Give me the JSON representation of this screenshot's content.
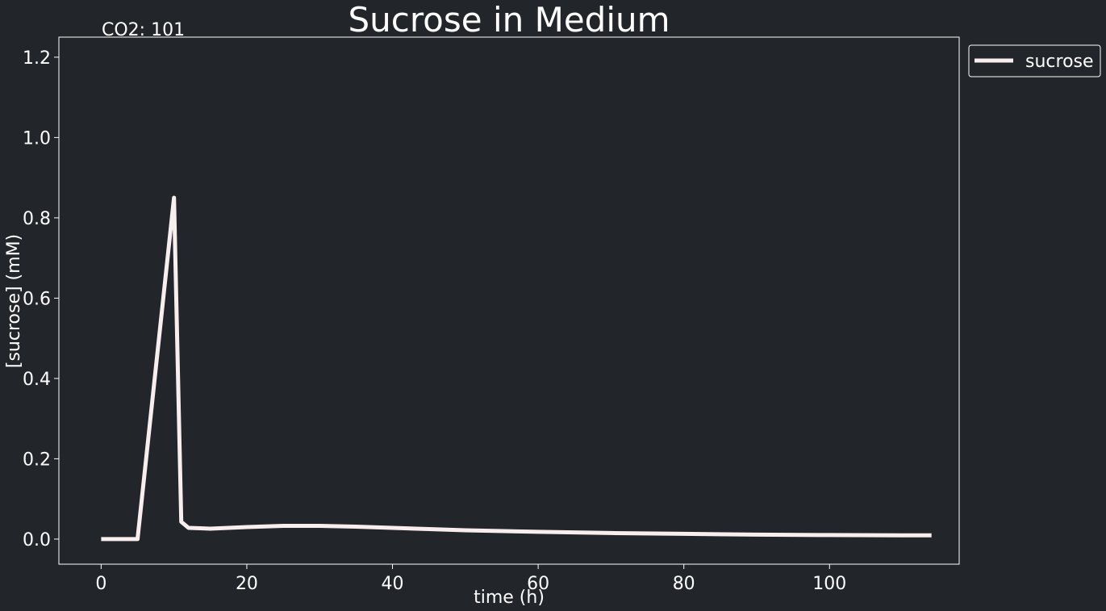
{
  "chart_data": {
    "type": "line",
    "title": "Sucrose in Medium",
    "annotation": "CO2: 101",
    "xlabel": "time (h)",
    "ylabel": "[sucrose] (mM)",
    "xlim": [
      -5.8,
      117.8
    ],
    "ylim": [
      -0.0625,
      1.25
    ],
    "xticks": [
      0,
      20,
      40,
      60,
      80,
      100
    ],
    "xtick_labels": [
      "0",
      "20",
      "40",
      "60",
      "80",
      "100"
    ],
    "yticks": [
      0.0,
      0.2,
      0.4,
      0.6,
      0.8,
      1.0,
      1.2
    ],
    "ytick_labels": [
      "0.0",
      "0.2",
      "0.4",
      "0.6",
      "0.8",
      "1.0",
      "1.2"
    ],
    "grid": false,
    "legend_position": "outside-top-right",
    "background": "#222529",
    "axis_color": "#ffffff",
    "series": [
      {
        "name": "sucrose",
        "color": "#f8eeee",
        "x": [
          0,
          1,
          2,
          3,
          4,
          5,
          10,
          11,
          12,
          15,
          20,
          25,
          30,
          35,
          40,
          45,
          50,
          60,
          70,
          80,
          90,
          100,
          110,
          114
        ],
        "y": [
          0.0,
          0.0,
          0.0,
          0.0,
          0.0,
          0.0,
          0.85,
          0.043,
          0.028,
          0.026,
          0.03,
          0.033,
          0.033,
          0.031,
          0.028,
          0.025,
          0.022,
          0.018,
          0.015,
          0.013,
          0.011,
          0.01,
          0.0095,
          0.0093
        ]
      }
    ]
  }
}
